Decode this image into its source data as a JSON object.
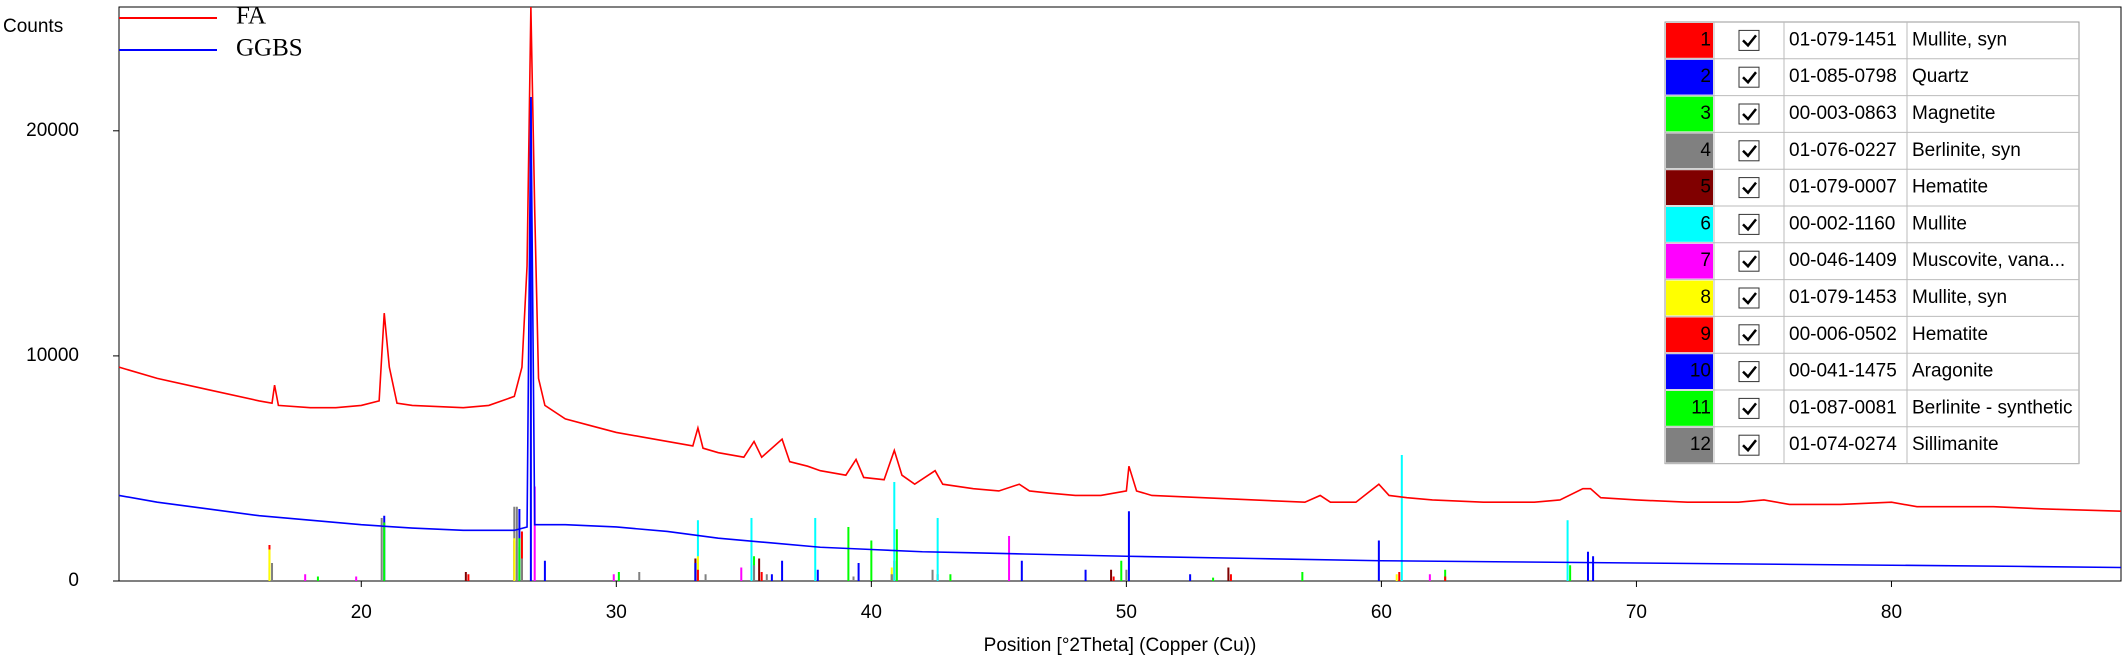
{
  "chart_data": {
    "type": "line",
    "ylabel": "Counts",
    "xlabel": "Position [°2Theta] (Copper (Cu))",
    "xlim": [
      10.5,
      89
    ],
    "ylim": [
      0,
      25500
    ],
    "xticks": [
      20,
      30,
      40,
      50,
      60,
      70,
      80
    ],
    "yticks": [
      0,
      10000,
      20000
    ],
    "series": [
      {
        "name": "FA",
        "color": "#ff0000",
        "x": [
          10.5,
          12,
          14,
          16,
          16.5,
          16.6,
          16.75,
          18,
          19,
          20,
          20.7,
          20.9,
          21.1,
          21.4,
          22,
          24,
          25,
          26,
          26.3,
          26.5,
          26.65,
          26.8,
          26.95,
          27.2,
          28,
          29,
          30,
          31,
          32,
          33,
          33.2,
          33.4,
          34,
          35,
          35.4,
          35.7,
          36.5,
          36.8,
          37.5,
          38,
          39,
          39.4,
          39.7,
          40.5,
          40.9,
          41.2,
          41.7,
          42.5,
          42.8,
          44,
          45,
          45.8,
          46.2,
          47,
          48,
          49,
          50,
          50.1,
          50.4,
          51,
          53,
          55,
          57,
          57.6,
          58,
          59,
          59.9,
          60.3,
          61,
          62,
          64,
          66,
          67,
          67.9,
          68.2,
          68.6,
          70,
          72,
          74,
          75,
          76,
          78,
          80,
          81,
          84,
          86,
          89
        ],
        "values": [
          9500,
          9000,
          8500,
          8000,
          7900,
          8700,
          7800,
          7700,
          7700,
          7800,
          8000,
          11900,
          9500,
          7900,
          7800,
          7700,
          7800,
          8200,
          9500,
          14000,
          25500,
          16500,
          9000,
          7800,
          7200,
          6900,
          6600,
          6400,
          6200,
          6000,
          6800,
          5900,
          5700,
          5500,
          6200,
          5500,
          6300,
          5300,
          5100,
          4900,
          4700,
          5400,
          4600,
          4500,
          5800,
          4700,
          4300,
          4900,
          4300,
          4100,
          4000,
          4300,
          4000,
          3900,
          3800,
          3800,
          4000,
          5100,
          4000,
          3800,
          3700,
          3600,
          3500,
          3800,
          3500,
          3500,
          4300,
          3800,
          3700,
          3600,
          3500,
          3500,
          3600,
          4100,
          4100,
          3700,
          3600,
          3500,
          3500,
          3600,
          3400,
          3400,
          3500,
          3300,
          3300,
          3200,
          3100
        ]
      },
      {
        "name": "GGBS",
        "color": "#0000ff",
        "x": [
          10.5,
          12,
          14,
          16,
          18,
          20,
          22,
          24,
          26,
          26.5,
          26.65,
          26.8,
          28,
          30,
          32,
          34,
          36,
          38,
          40,
          42,
          44,
          46,
          50,
          55,
          60,
          65,
          70,
          75,
          80,
          85,
          89
        ],
        "values": [
          3800,
          3500,
          3200,
          2900,
          2700,
          2500,
          2350,
          2250,
          2250,
          2400,
          21500,
          2500,
          2500,
          2400,
          2200,
          1900,
          1700,
          1500,
          1400,
          1300,
          1250,
          1200,
          1100,
          1000,
          900,
          850,
          800,
          750,
          700,
          650,
          600
        ]
      }
    ],
    "phases": [
      {
        "id": "1",
        "color": "#ff0000",
        "checked": true,
        "code": "01-079-1451",
        "name": "Mullite, syn",
        "positions": [
          16.4,
          26.0,
          26.3,
          33.2,
          35.3,
          40.9,
          42.6,
          60.7
        ],
        "intensities": [
          1600,
          1800,
          2200,
          1000,
          700,
          900,
          300,
          400
        ]
      },
      {
        "id": "2",
        "color": "#0000ff",
        "checked": true,
        "code": "01-085-0798",
        "name": "Quartz",
        "positions": [
          20.9,
          26.65,
          36.5,
          39.5,
          50.1,
          59.9,
          68.1,
          68.3
        ],
        "intensities": [
          2900,
          21500,
          900,
          800,
          3100,
          1800,
          1300,
          1100
        ]
      },
      {
        "id": "3",
        "color": "#00ff00",
        "checked": true,
        "code": "00-003-0863",
        "name": "Magnetite",
        "positions": [
          18.3,
          30.1,
          35.4,
          43.1,
          53.4,
          56.9,
          62.5
        ],
        "intensities": [
          200,
          400,
          1100,
          300,
          150,
          400,
          500
        ]
      },
      {
        "id": "4",
        "color": "#808080",
        "checked": true,
        "code": "01-076-0227",
        "name": "Berlinite, syn",
        "positions": [
          20.8,
          26.0,
          26.3,
          35.9,
          39.3,
          50.0
        ],
        "intensities": [
          2800,
          3300,
          1000,
          300,
          200,
          500
        ]
      },
      {
        "id": "5",
        "color": "#800000",
        "checked": true,
        "code": "01-079-0007",
        "name": "Hematite",
        "positions": [
          24.1,
          33.1,
          35.6,
          40.8,
          49.4,
          54.0
        ],
        "intensities": [
          400,
          1000,
          1000,
          300,
          500,
          600
        ]
      },
      {
        "id": "6",
        "color": "#00ffff",
        "checked": true,
        "code": "00-002-1160",
        "name": "Mullite",
        "positions": [
          16.4,
          26.2,
          33.2,
          35.3,
          37.8,
          40.9,
          42.6,
          60.8,
          67.3
        ],
        "intensities": [
          600,
          1500,
          2700,
          2800,
          2800,
          4400,
          2800,
          5600,
          2700
        ]
      },
      {
        "id": "7",
        "color": "#ff00ff",
        "checked": true,
        "code": "00-046-1409",
        "name": "Muscovite, vana...",
        "positions": [
          17.8,
          19.8,
          26.8,
          29.9,
          34.9,
          45.4,
          61.9
        ],
        "intensities": [
          300,
          200,
          4200,
          300,
          600,
          2000,
          300
        ]
      },
      {
        "id": "8",
        "color": "#ffff00",
        "checked": true,
        "code": "01-079-1453",
        "name": "Mullite, syn",
        "positions": [
          16.4,
          26.0,
          33.2,
          40.8,
          60.6
        ],
        "intensities": [
          1400,
          1900,
          1100,
          600,
          300
        ]
      },
      {
        "id": "9",
        "color": "#ff0000",
        "checked": true,
        "code": "00-006-0502",
        "name": "Hematite",
        "positions": [
          24.2,
          33.2,
          35.7,
          49.5,
          54.1,
          62.5
        ],
        "intensities": [
          300,
          500,
          400,
          200,
          300,
          200
        ]
      },
      {
        "id": "10",
        "color": "#0000ff",
        "checked": true,
        "code": "00-041-1475",
        "name": "Aragonite",
        "positions": [
          26.2,
          27.2,
          33.1,
          36.1,
          37.9,
          45.9,
          48.4,
          52.5
        ],
        "intensities": [
          3200,
          900,
          800,
          300,
          500,
          900,
          500,
          300
        ]
      },
      {
        "id": "11",
        "color": "#00ff00",
        "checked": true,
        "code": "01-087-0081",
        "name": "Berlinite - synthetic",
        "positions": [
          20.9,
          26.2,
          39.1,
          40.0,
          41.0,
          49.8,
          67.4
        ],
        "intensities": [
          2600,
          1900,
          2400,
          1800,
          2300,
          900,
          700
        ]
      },
      {
        "id": "12",
        "color": "#808080",
        "checked": true,
        "code": "01-074-0274",
        "name": "Sillimanite",
        "positions": [
          16.5,
          26.1,
          30.9,
          33.5,
          35.4,
          40.8,
          42.4
        ],
        "intensities": [
          800,
          3300,
          400,
          300,
          700,
          300,
          500
        ]
      }
    ]
  }
}
